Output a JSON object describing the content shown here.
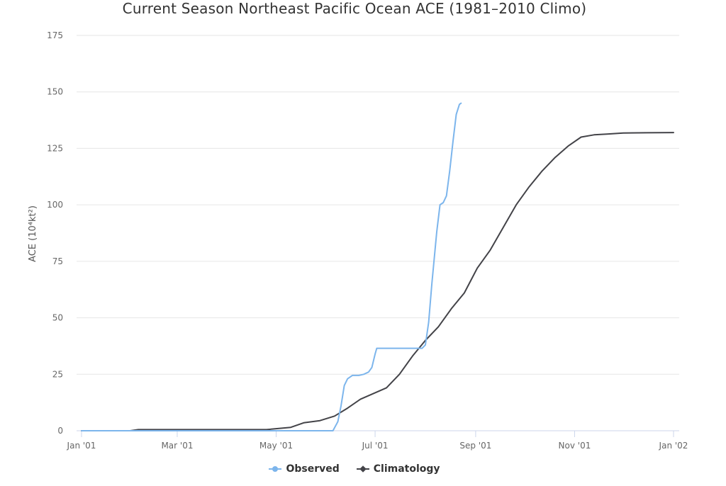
{
  "chart_data": {
    "type": "line",
    "title": "Current Season Northeast Pacific Ocean ACE (1981–2010 Climo)",
    "ylabel": "ACE (10⁴kt²)",
    "xlabel": "",
    "ylim": [
      0,
      175
    ],
    "yticks": [
      0,
      25,
      50,
      75,
      100,
      125,
      150,
      175
    ],
    "xlim": [
      "2001-01-01",
      "2002-01-01"
    ],
    "xticks": [
      {
        "date": "2001-01-01",
        "label": "Jan '01"
      },
      {
        "date": "2001-03-01",
        "label": "Mar '01"
      },
      {
        "date": "2001-05-01",
        "label": "May '01"
      },
      {
        "date": "2001-07-01",
        "label": "Jul '01"
      },
      {
        "date": "2001-09-01",
        "label": "Sep '01"
      },
      {
        "date": "2001-11-01",
        "label": "Nov '01"
      },
      {
        "date": "2002-01-01",
        "label": "Jan '02"
      }
    ],
    "grid": true,
    "legend_position": "bottom-center",
    "series": [
      {
        "name": "Observed",
        "color": "#7cb5ec",
        "points": [
          [
            "2001-01-01",
            0
          ],
          [
            "2001-06-05",
            0
          ],
          [
            "2001-06-08",
            4
          ],
          [
            "2001-06-10",
            11
          ],
          [
            "2001-06-12",
            20
          ],
          [
            "2001-06-14",
            23
          ],
          [
            "2001-06-17",
            24.5
          ],
          [
            "2001-06-21",
            24.5
          ],
          [
            "2001-06-24",
            25
          ],
          [
            "2001-06-27",
            26
          ],
          [
            "2001-06-29",
            28
          ],
          [
            "2001-07-01",
            34
          ],
          [
            "2001-07-02",
            36.5
          ],
          [
            "2001-07-10",
            36.5
          ],
          [
            "2001-07-20",
            36.5
          ],
          [
            "2001-07-30",
            36.5
          ],
          [
            "2001-08-01",
            38
          ],
          [
            "2001-08-03",
            48
          ],
          [
            "2001-08-05",
            65
          ],
          [
            "2001-08-08",
            88
          ],
          [
            "2001-08-10",
            100
          ],
          [
            "2001-08-12",
            101
          ],
          [
            "2001-08-14",
            104
          ],
          [
            "2001-08-16",
            115
          ],
          [
            "2001-08-18",
            128
          ],
          [
            "2001-08-20",
            140
          ],
          [
            "2001-08-22",
            144.5
          ],
          [
            "2001-08-23",
            145
          ]
        ]
      },
      {
        "name": "Climatology",
        "color": "#434348",
        "points": [
          [
            "2001-01-01",
            0
          ],
          [
            "2001-01-31",
            0
          ],
          [
            "2001-02-05",
            0.5
          ],
          [
            "2001-04-25",
            0.5
          ],
          [
            "2001-05-10",
            1.5
          ],
          [
            "2001-05-18",
            3.5
          ],
          [
            "2001-05-28",
            4.5
          ],
          [
            "2001-06-06",
            6.5
          ],
          [
            "2001-06-14",
            10
          ],
          [
            "2001-06-22",
            14
          ],
          [
            "2001-06-30",
            16.5
          ],
          [
            "2001-07-08",
            19
          ],
          [
            "2001-07-16",
            25
          ],
          [
            "2001-07-24",
            33
          ],
          [
            "2001-08-01",
            40
          ],
          [
            "2001-08-09",
            46
          ],
          [
            "2001-08-17",
            54
          ],
          [
            "2001-08-25",
            61
          ],
          [
            "2001-09-02",
            72
          ],
          [
            "2001-09-10",
            80
          ],
          [
            "2001-09-18",
            90
          ],
          [
            "2001-09-26",
            100
          ],
          [
            "2001-10-04",
            108
          ],
          [
            "2001-10-12",
            115
          ],
          [
            "2001-10-20",
            121
          ],
          [
            "2001-10-28",
            126
          ],
          [
            "2001-11-05",
            130
          ],
          [
            "2001-11-13",
            131
          ],
          [
            "2001-11-21",
            131.3
          ],
          [
            "2001-12-01",
            131.8
          ],
          [
            "2001-12-15",
            131.9
          ],
          [
            "2002-01-01",
            132
          ]
        ]
      }
    ]
  }
}
